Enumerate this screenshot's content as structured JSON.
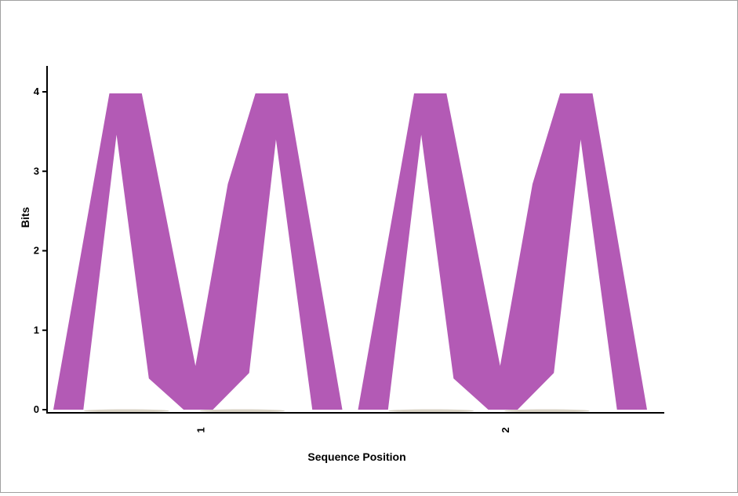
{
  "chart_data": {
    "type": "sequence-logo",
    "xlabel": "Sequence Position",
    "ylabel": "Bits",
    "ylim": [
      0,
      4
    ],
    "y_ticks": [
      "0",
      "1",
      "2",
      "3",
      "4"
    ],
    "positions": [
      {
        "label": "1",
        "letters": [
          {
            "letter": "W",
            "bits": 3.98
          }
        ]
      },
      {
        "label": "2",
        "letters": [
          {
            "letter": "W",
            "bits": 3.98
          }
        ]
      }
    ],
    "letter_color": "#b35ab5",
    "faint_color": "#d8d2c4"
  }
}
